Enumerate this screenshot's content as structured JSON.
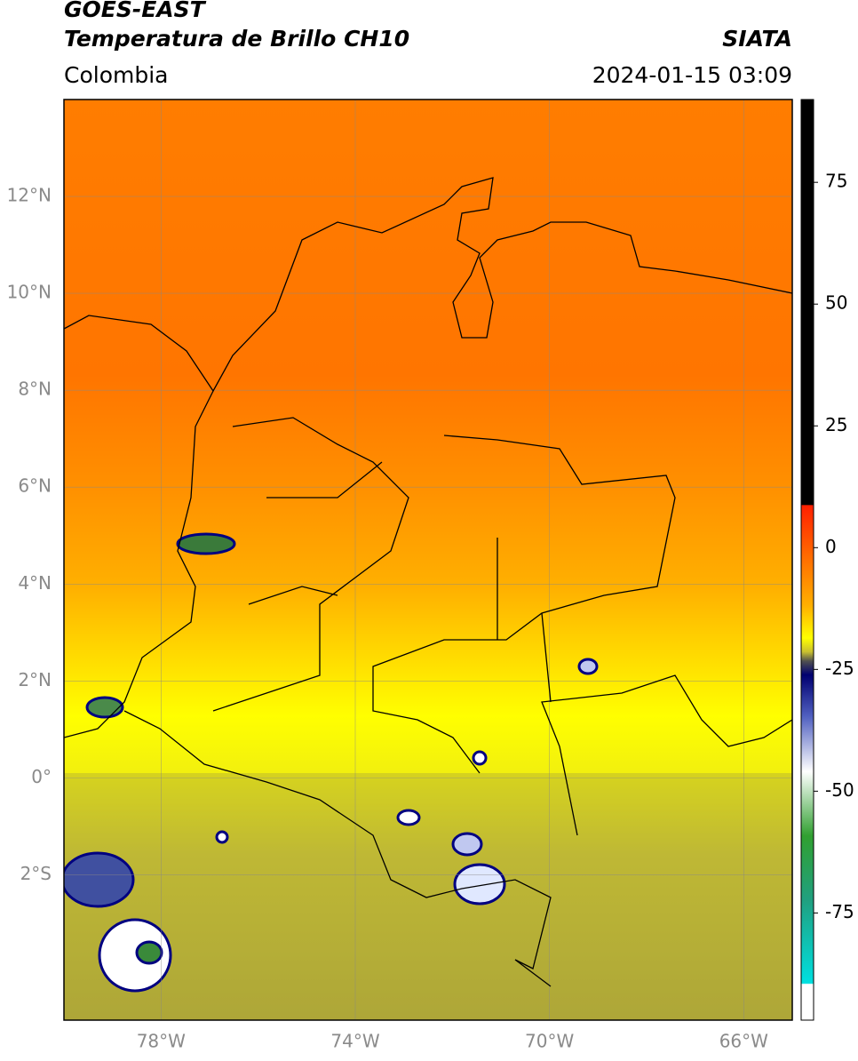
{
  "header": {
    "title": "GOES-EAST",
    "subtitle": "Temperatura de Brillo CH10",
    "region": "Colombia",
    "source": "SIATA",
    "datetime": "2024-01-15 03:09"
  },
  "map": {
    "lat_range": [
      -5,
      14
    ],
    "lon_range": [
      -80,
      -65
    ],
    "lat_ticks": [
      {
        "value": 12,
        "label": "12°N"
      },
      {
        "value": 10,
        "label": "10°N"
      },
      {
        "value": 8,
        "label": "8°N"
      },
      {
        "value": 6,
        "label": "6°N"
      },
      {
        "value": 4,
        "label": "4°N"
      },
      {
        "value": 2,
        "label": "2°N"
      },
      {
        "value": 0,
        "label": "0°"
      },
      {
        "value": -2,
        "label": "2°S"
      }
    ],
    "lon_ticks": [
      {
        "value": -78,
        "label": "78°W"
      },
      {
        "value": -74,
        "label": "74°W"
      },
      {
        "value": -70,
        "label": "70°W"
      },
      {
        "value": -66,
        "label": "66°W"
      }
    ]
  },
  "colorbar": {
    "range": [
      -97,
      92
    ],
    "ticks": [
      75,
      50,
      25,
      0,
      -25,
      -50,
      -75
    ]
  }
}
